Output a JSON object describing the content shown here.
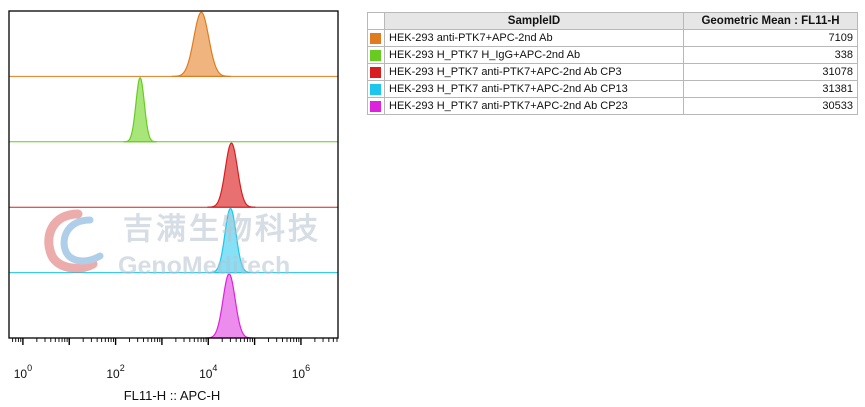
{
  "chart_data": {
    "type": "histogram-overlay",
    "xlabel": "FL11-H :: APC-H",
    "xscale": "log",
    "xlim_exp": [
      -0.3,
      6.8
    ],
    "x_ticks": [
      {
        "base": "10",
        "exp": "0",
        "value": 1
      },
      {
        "base": "10",
        "exp": "2",
        "value": 100
      },
      {
        "base": "10",
        "exp": "4",
        "value": 10000
      },
      {
        "base": "10",
        "exp": "6",
        "value": 1000000
      }
    ],
    "series": [
      {
        "name": "HEK-293 anti-PTK7+APC-2nd Ab",
        "color": "#e07b20",
        "fill": "#f0b57e",
        "geo_mean": "7109",
        "peak_log": 3.85,
        "width_log": 0.16,
        "lane": 0
      },
      {
        "name": "HEK-293 H_PTK7 H_IgG+APC-2nd Ab",
        "color": "#66cc22",
        "fill": "#a8e67a",
        "geo_mean": "338",
        "peak_log": 2.53,
        "width_log": 0.09,
        "lane": 1
      },
      {
        "name": "HEK-293 H_PTK7 anti-PTK7+APC-2nd Ab CP3",
        "color": "#d81e1e",
        "fill": "#e97070",
        "geo_mean": "31078",
        "peak_log": 4.5,
        "width_log": 0.13,
        "lane": 2
      },
      {
        "name": "HEK-293 H_PTK7 anti-PTK7+APC-2nd Ab CP13",
        "color": "#1cc6ec",
        "fill": "#86e0f6",
        "geo_mean": "31381",
        "peak_log": 4.48,
        "width_log": 0.12,
        "lane": 3
      },
      {
        "name": "HEK-293 H_PTK7 anti-PTK7+APC-2nd Ab CP23",
        "color": "#dd22dd",
        "fill": "#ec8cec",
        "geo_mean": "30533",
        "peak_log": 4.45,
        "width_log": 0.13,
        "lane": 4
      }
    ]
  },
  "legend": {
    "header_sample": "SampleID",
    "header_value": "Geometric Mean : FL11-H"
  },
  "watermark": {
    "cn": "吉满生物科技",
    "en": "GenoMeditech"
  }
}
